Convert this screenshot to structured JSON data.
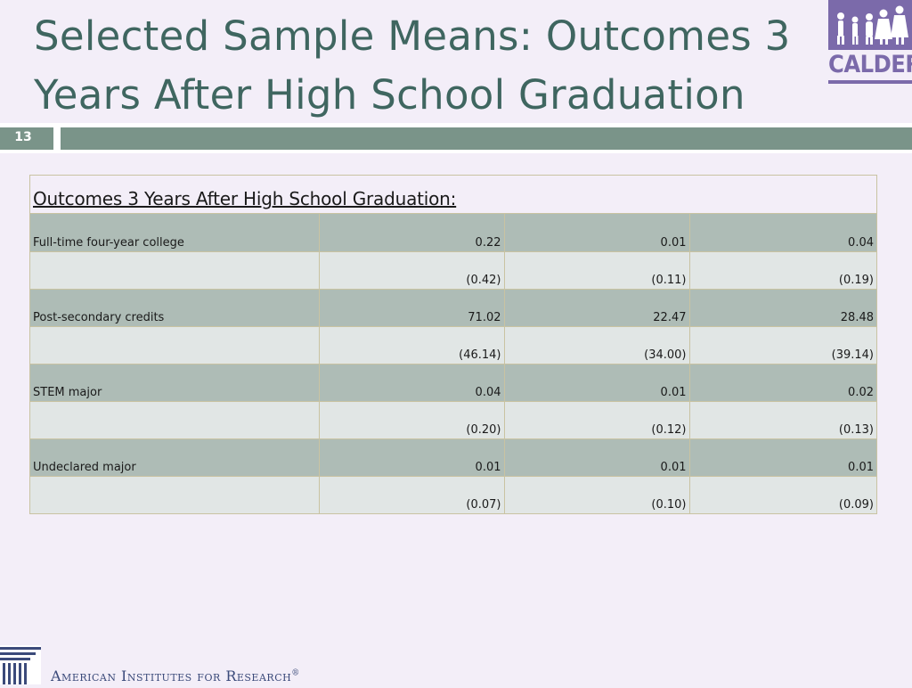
{
  "slide": {
    "title": "Selected Sample Means: Outcomes 3 Years After High School Graduation",
    "page_number": "13"
  },
  "logo": {
    "text": "CALDER",
    "icon": "calder-figures-icon"
  },
  "table": {
    "title": "Outcomes 3 Years After High School Graduation:",
    "rows": [
      {
        "type": "mean",
        "label": "Full-time four-year college",
        "values": [
          "0.22",
          "0.01",
          "0.04"
        ]
      },
      {
        "type": "se",
        "label": "",
        "values": [
          "(0.42)",
          "(0.11)",
          "(0.19)"
        ]
      },
      {
        "type": "mean",
        "label": "Post-secondary credits",
        "values": [
          "71.02",
          "22.47",
          "28.48"
        ]
      },
      {
        "type": "se",
        "label": "",
        "values": [
          "(46.14)",
          "(34.00)",
          "(39.14)"
        ]
      },
      {
        "type": "mean",
        "label": "STEM major",
        "values": [
          "0.04",
          "0.01",
          "0.02"
        ]
      },
      {
        "type": "se",
        "label": "",
        "values": [
          "(0.20)",
          "(0.12)",
          "(0.13)"
        ]
      },
      {
        "type": "mean",
        "label": "Undeclared major",
        "values": [
          "0.01",
          "0.01",
          "0.01"
        ]
      },
      {
        "type": "se",
        "label": "",
        "values": [
          "(0.07)",
          "(0.10)",
          "(0.09)"
        ]
      }
    ]
  },
  "footer": {
    "org_name": "American Institutes for Research",
    "trademark": "®",
    "icon": "air-columns-icon"
  },
  "colors": {
    "title": "#3f6660",
    "bar": "#7a9489",
    "mean_row": "#aebcb6",
    "se_row": "#e1e6e5",
    "logo": "#7b6aaa",
    "background": "#f3eef8"
  }
}
